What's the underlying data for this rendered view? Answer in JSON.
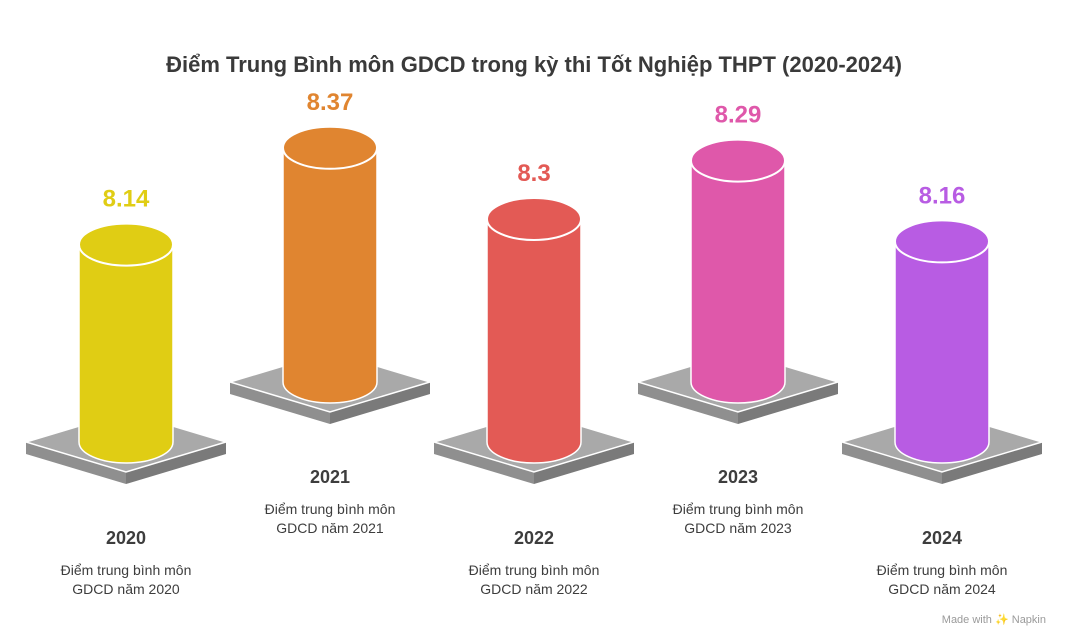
{
  "chart_data": {
    "type": "bar",
    "title": "Điểm Trung Bình môn GDCD trong kỳ thi Tốt Nghiệp THPT (2020-2024)",
    "categories": [
      "2020",
      "2021",
      "2022",
      "2023",
      "2024"
    ],
    "values": [
      8.14,
      8.37,
      8.3,
      8.29,
      8.16
    ],
    "value_labels": [
      "8.14",
      "8.37",
      "8.3",
      "8.29",
      "8.16"
    ],
    "descriptions": [
      [
        "Điểm trung bình môn",
        "GDCD năm 2020"
      ],
      [
        "Điểm trung bình môn",
        "GDCD năm 2021"
      ],
      [
        "Điểm trung bình môn",
        "GDCD năm 2022"
      ],
      [
        "Điểm trung bình môn",
        "GDCD năm 2023"
      ],
      [
        "Điểm trung bình môn",
        "GDCD năm 2024"
      ]
    ],
    "colors": [
      "#e0cd14",
      "#e08530",
      "#e35a55",
      "#df58aa",
      "#b85ce3"
    ]
  },
  "footer": {
    "made_with": "Made with",
    "brand": "Napkin"
  }
}
